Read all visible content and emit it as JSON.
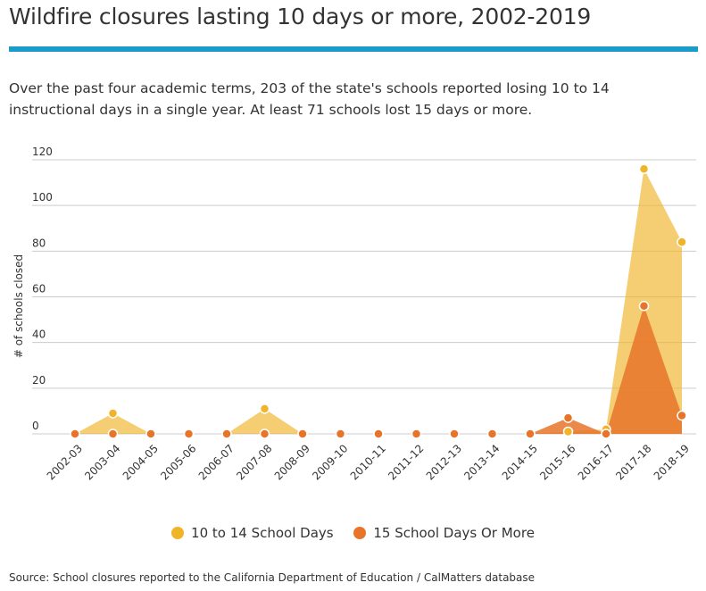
{
  "title": "Wildfire closures lasting 10 days or more, 2002-2019",
  "subtitle": "Over the past four academic terms, 203 of the state's schools reported losing 10 to 14 instructional days in a single year. At least 71 schools lost 15 days or more.",
  "source": "Source: School closures reported to the California Department of Education / CalMatters database",
  "colors": {
    "accent_rule": "#1a9bc9",
    "series_10_14": "#f0b429",
    "series_15": "#e8742a",
    "grid": "#cccccc"
  },
  "chart_data": {
    "type": "area",
    "categories": [
      "2002-03",
      "2003-04",
      "2004-05",
      "2005-06",
      "2006-07",
      "2007-08",
      "2008-09",
      "2009-10",
      "2010-11",
      "2011-12",
      "2012-13",
      "2013-14",
      "2014-15",
      "2015-16",
      "2016-17",
      "2017-18",
      "2018-19"
    ],
    "series": [
      {
        "name": "10 to 14 School Days",
        "color": "#f0b429",
        "values": [
          0,
          9,
          0,
          0,
          0,
          11,
          0,
          0,
          0,
          0,
          0,
          0,
          0,
          1,
          2,
          116,
          84
        ]
      },
      {
        "name": "15 School Days Or More",
        "color": "#e8742a",
        "values": [
          0,
          0,
          0,
          0,
          0,
          0,
          0,
          0,
          0,
          0,
          0,
          0,
          0,
          7,
          0,
          56,
          8
        ]
      }
    ],
    "ylabel": "# of schools closed",
    "xlabel": "",
    "ylim": [
      0,
      120
    ],
    "yticks": [
      0,
      20,
      40,
      60,
      80,
      100,
      120
    ],
    "grid": true,
    "legend_position": "bottom"
  }
}
